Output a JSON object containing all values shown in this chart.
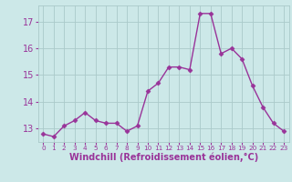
{
  "x": [
    0,
    1,
    2,
    3,
    4,
    5,
    6,
    7,
    8,
    9,
    10,
    11,
    12,
    13,
    14,
    15,
    16,
    17,
    18,
    19,
    20,
    21,
    22,
    23
  ],
  "y": [
    12.8,
    12.7,
    13.1,
    13.3,
    13.6,
    13.3,
    13.2,
    13.2,
    12.9,
    13.1,
    14.4,
    14.7,
    15.3,
    15.3,
    15.2,
    17.3,
    17.3,
    15.8,
    16.0,
    15.6,
    14.6,
    13.8,
    13.2,
    12.9
  ],
  "line_color": "#993399",
  "marker": "D",
  "markersize": 2.5,
  "linewidth": 1.0,
  "xlabel": "Windchill (Refroidissement éolien,°C)",
  "xlabel_fontsize": 7,
  "yticks": [
    13,
    14,
    15,
    16,
    17
  ],
  "xticks": [
    0,
    1,
    2,
    3,
    4,
    5,
    6,
    7,
    8,
    9,
    10,
    11,
    12,
    13,
    14,
    15,
    16,
    17,
    18,
    19,
    20,
    21,
    22,
    23
  ],
  "xtick_labels": [
    "0",
    "1",
    "2",
    "3",
    "4",
    "5",
    "6",
    "7",
    "8",
    "9",
    "10",
    "11",
    "12",
    "13",
    "14",
    "15",
    "16",
    "17",
    "18",
    "19",
    "20",
    "21",
    "22",
    "23"
  ],
  "ylim": [
    12.5,
    17.6
  ],
  "xlim": [
    -0.5,
    23.5
  ],
  "bg_color": "#cce8e8",
  "grid_color": "#aacaca",
  "tick_color": "#993399",
  "label_color": "#993399"
}
